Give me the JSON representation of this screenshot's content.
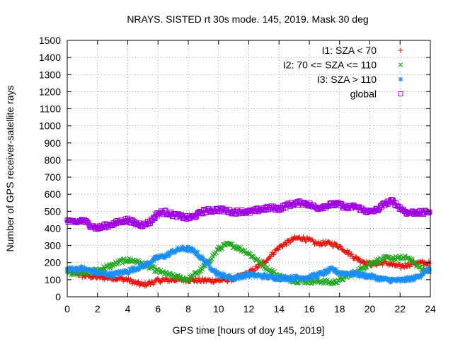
{
  "chart_data": {
    "type": "scatter",
    "title": "NRAYS. SISTED rt 30s mode. 145, 2019. Mask 30 deg",
    "xlabel": "GPS time [hours of doy 145, 2019]",
    "ylabel": "Number of GPS receiver-satellite rays",
    "xlim": [
      0,
      24
    ],
    "ylim": [
      0,
      1500
    ],
    "xticks": [
      0,
      2,
      4,
      6,
      8,
      10,
      12,
      14,
      16,
      18,
      20,
      22,
      24
    ],
    "yticks": [
      0,
      100,
      200,
      300,
      400,
      500,
      600,
      700,
      800,
      900,
      1000,
      1100,
      1200,
      1300,
      1400,
      1500
    ],
    "grid": true,
    "legend_position": "top-right",
    "series": [
      {
        "name": "I1: SZA < 70",
        "marker": "plus",
        "color": "#e8120c",
        "x": [
          0,
          0.5,
          1,
          1.5,
          2,
          3,
          4,
          4.5,
          5,
          5.5,
          6,
          7,
          8,
          9,
          10,
          10.5,
          11,
          12,
          13,
          14,
          15,
          15.5,
          16,
          16.5,
          17,
          17.5,
          18,
          19,
          20,
          21,
          22,
          23,
          24
        ],
        "y": [
          165,
          140,
          125,
          120,
          115,
          110,
          100,
          80,
          70,
          80,
          95,
          100,
          100,
          95,
          95,
          100,
          105,
          140,
          200,
          290,
          340,
          345,
          330,
          310,
          315,
          310,
          295,
          230,
          190,
          200,
          175,
          200,
          195
        ]
      },
      {
        "name": "I2: 70 <= SZA <= 110",
        "marker": "cross",
        "color": "#1ea71e",
        "x": [
          0,
          1,
          2,
          3,
          3.5,
          4,
          4.5,
          5,
          6,
          7,
          8,
          9,
          10,
          10.5,
          11,
          12,
          13,
          14,
          15,
          16,
          17,
          17.5,
          18,
          19,
          20,
          21,
          22,
          22.5,
          23,
          24
        ],
        "y": [
          140,
          145,
          155,
          185,
          205,
          215,
          210,
          190,
          150,
          120,
          100,
          170,
          280,
          305,
          300,
          255,
          180,
          120,
          95,
          90,
          90,
          80,
          100,
          140,
          195,
          225,
          225,
          230,
          190,
          140
        ]
      },
      {
        "name": "I3: SZA > 110",
        "marker": "star",
        "color": "#1a8ef0",
        "x": [
          0,
          1,
          2,
          3,
          4,
          5,
          6,
          6.5,
          7,
          7.5,
          8,
          8.5,
          9,
          10,
          11,
          12,
          13,
          14,
          15,
          16,
          17,
          17.5,
          18,
          19,
          20,
          21,
          22,
          23,
          24
        ],
        "y": [
          160,
          165,
          140,
          130,
          150,
          180,
          230,
          240,
          265,
          280,
          280,
          260,
          215,
          130,
          110,
          130,
          120,
          110,
          110,
          115,
          140,
          160,
          140,
          135,
          120,
          100,
          95,
          110,
          165
        ]
      },
      {
        "name": "global",
        "marker": "square",
        "color": "#a100e0",
        "x": [
          0,
          0.5,
          1,
          1.5,
          2,
          2.5,
          3,
          3.5,
          4,
          4.5,
          5,
          5.5,
          6,
          6.5,
          7,
          7.5,
          8,
          8.5,
          9,
          9.5,
          10,
          10.5,
          11,
          11.5,
          12,
          12.5,
          13,
          13.5,
          14,
          14.5,
          15,
          15.5,
          16,
          16.5,
          17,
          17.5,
          18,
          18.5,
          19,
          19.5,
          20,
          20.5,
          21,
          21.5,
          22,
          22.5,
          23,
          23.5,
          24
        ],
        "y": [
          450,
          430,
          450,
          420,
          400,
          415,
          425,
          440,
          450,
          430,
          420,
          440,
          490,
          495,
          480,
          470,
          460,
          475,
          500,
          505,
          510,
          505,
          495,
          500,
          495,
          505,
          515,
          520,
          515,
          535,
          545,
          550,
          540,
          520,
          530,
          540,
          540,
          520,
          530,
          510,
          495,
          510,
          545,
          560,
          520,
          490,
          495,
          490,
          500
        ]
      }
    ]
  }
}
